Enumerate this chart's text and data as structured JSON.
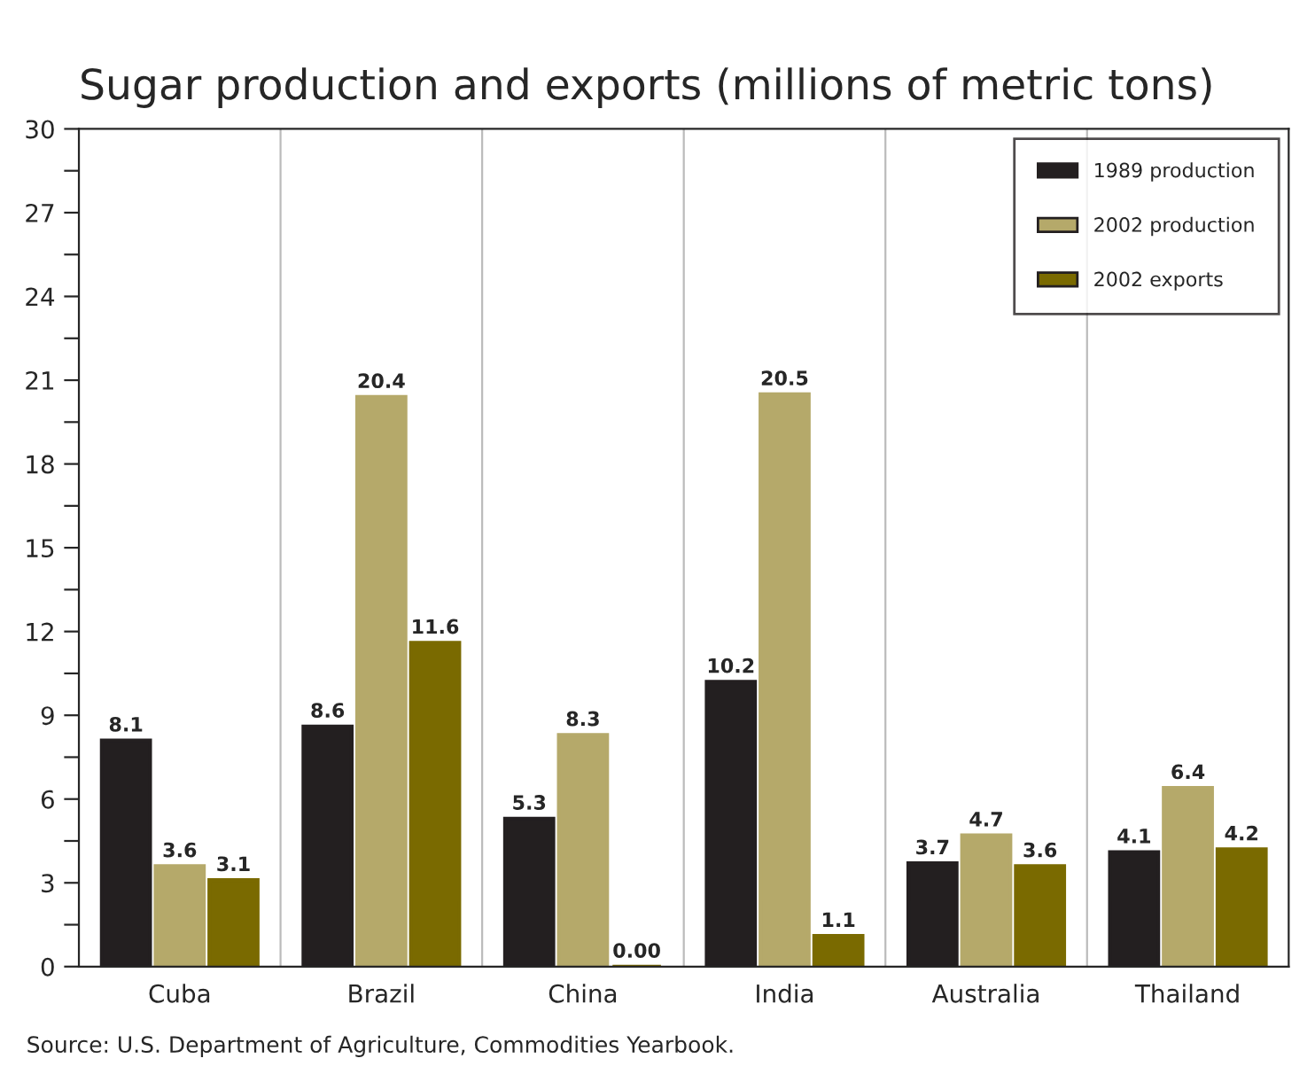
{
  "chart_data": {
    "type": "bar",
    "title": "Sugar production and exports (millions of metric tons)",
    "categories": [
      "Cuba",
      "Brazil",
      "China",
      "India",
      "Australia",
      "Thailand"
    ],
    "series": [
      {
        "name": "1989 production",
        "color": "#231f20",
        "values": [
          8.1,
          8.6,
          5.3,
          10.2,
          3.7,
          4.1
        ],
        "value_labels": [
          "8.1",
          "8.6",
          "5.3",
          "10.2",
          "3.7",
          "4.1"
        ]
      },
      {
        "name": "2002 production",
        "color": "#b5a96a",
        "values": [
          3.6,
          20.4,
          8.3,
          20.5,
          4.7,
          6.4
        ],
        "value_labels": [
          "3.6",
          "20.4",
          "8.3",
          "20.5",
          "4.7",
          "6.4"
        ]
      },
      {
        "name": "2002 exports",
        "color": "#7a6a00",
        "values": [
          3.1,
          11.6,
          0.0,
          1.1,
          3.6,
          4.2
        ],
        "value_labels": [
          "3.1",
          "11.6",
          "0.00",
          "1.1",
          "3.6",
          "4.2"
        ]
      }
    ],
    "ylim": [
      0,
      30
    ],
    "yticks": [
      0,
      {
        "value": 1.5,
        "label": null
      },
      3,
      {
        "value": 4.5,
        "label": null
      },
      6,
      {
        "value": 7.5,
        "label": null
      },
      9,
      {
        "value": 10.5,
        "label": null
      },
      12,
      {
        "value": 13.5,
        "label": null
      },
      15,
      {
        "value": 16.5,
        "label": null
      },
      18,
      {
        "value": 19.5,
        "label": null
      },
      21,
      {
        "value": 22.5,
        "label": null
      },
      24,
      {
        "value": 25.5,
        "label": null
      },
      27,
      {
        "value": 28.5,
        "label": null
      },
      30
    ],
    "legend": "top right",
    "grid": false,
    "annotations": [
      "Source: U.S. Department of Agriculture, Commodities Yearbook."
    ]
  }
}
